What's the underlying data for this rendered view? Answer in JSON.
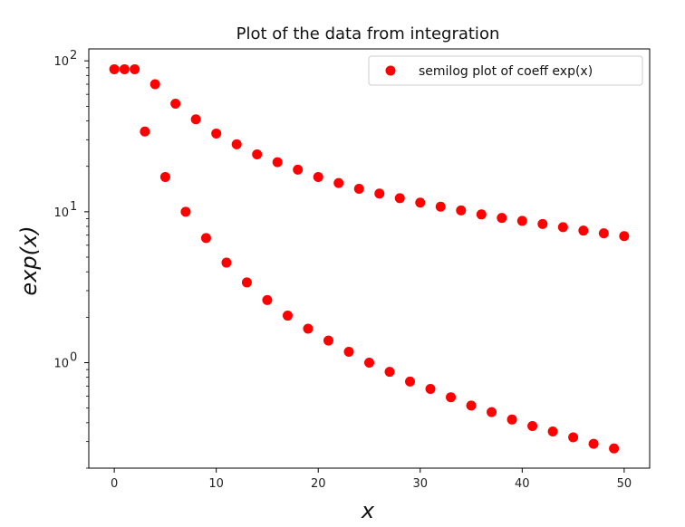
{
  "chart_data": {
    "type": "scatter",
    "title": "Plot of the data from integration",
    "xlabel": "x",
    "ylabel": "exp(x)",
    "yscale": "log",
    "xlim": [
      -2.5,
      52.5
    ],
    "ylim": [
      0.2,
      120
    ],
    "xticks": [
      0,
      10,
      20,
      30,
      40,
      50
    ],
    "xtick_labels": [
      "0",
      "10",
      "20",
      "30",
      "40",
      "50"
    ],
    "yticks": [
      1,
      10,
      100
    ],
    "ytick_labels": [
      "10",
      "10",
      "10"
    ],
    "ytick_exponents": [
      "0",
      "1",
      "2"
    ],
    "legend_position": "top-right",
    "marker_color": "#ff0000",
    "series": [
      {
        "name": "semilog plot of coeff exp(x)",
        "x": [
          0,
          1,
          2,
          3,
          4,
          5,
          6,
          7,
          8,
          9,
          10,
          11,
          12,
          13,
          14,
          15,
          16,
          17,
          18,
          19,
          20,
          21,
          22,
          23,
          24,
          25,
          26,
          27,
          28,
          29,
          30,
          31,
          32,
          33,
          34,
          35,
          36,
          37,
          38,
          39,
          40,
          41,
          42,
          43,
          44,
          45,
          46,
          47,
          48,
          49,
          50
        ],
        "y": [
          88,
          88,
          88,
          34,
          70,
          17,
          52,
          10,
          41,
          6.7,
          33,
          4.6,
          28,
          3.4,
          24,
          2.6,
          21.3,
          2.05,
          19,
          1.68,
          17,
          1.4,
          15.5,
          1.18,
          14.2,
          1.0,
          13.2,
          0.87,
          12.3,
          0.75,
          11.5,
          0.67,
          10.8,
          0.59,
          10.2,
          0.52,
          9.6,
          0.47,
          9.1,
          0.42,
          8.7,
          0.38,
          8.3,
          0.35,
          7.9,
          0.32,
          7.5,
          0.29,
          7.2,
          0.27,
          6.9
        ]
      }
    ]
  }
}
